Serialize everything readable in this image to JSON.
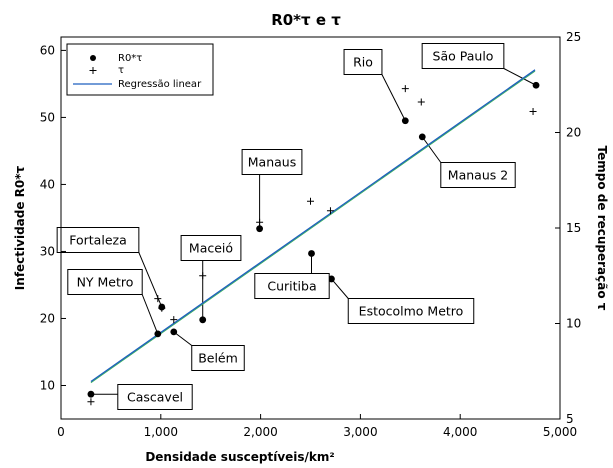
{
  "chart_data": {
    "type": "scatter",
    "title": "R0*τ e τ",
    "xlabel": "Densidade susceptíveis/km²",
    "ylabel_left": "Infectividade R0*τ",
    "ylabel_right": "Tempo de recuperação τ",
    "xlim": [
      0,
      5000
    ],
    "ylim_left": [
      5,
      62
    ],
    "ylim_right": [
      5,
      25
    ],
    "x_ticks": [
      0,
      1000,
      2000,
      3000,
      4000,
      5000
    ],
    "x_tick_labels": [
      "0",
      "1,000",
      "2,000",
      "3,000",
      "4,000",
      "5,000"
    ],
    "y_left_ticks": [
      10,
      20,
      30,
      40,
      50,
      60
    ],
    "y_right_ticks": [
      5,
      10,
      15,
      20,
      25
    ],
    "legend_position": "top-left",
    "legend": [
      "R0*τ",
      "τ",
      "Regressão linear"
    ],
    "series": [
      {
        "name": "R0*τ",
        "axis": "left",
        "marker": "circle",
        "x": [
          300,
          970,
          1010,
          1130,
          1420,
          1990,
          2510,
          2710,
          3450,
          3620,
          4760
        ],
        "y": [
          8.7,
          17.7,
          21.7,
          18.0,
          19.8,
          33.4,
          29.7,
          25.9,
          49.5,
          47.1,
          54.8
        ]
      },
      {
        "name": "τ",
        "axis": "right",
        "marker": "plus",
        "x": [
          300,
          970,
          1010,
          1130,
          1420,
          1990,
          2500,
          2700,
          3450,
          3610,
          4730
        ],
        "y": [
          5.9,
          11.3,
          10.8,
          10.2,
          12.5,
          15.3,
          16.4,
          15.9,
          22.3,
          21.6,
          21.1
        ]
      },
      {
        "name": "Regressão linear",
        "axis": "left",
        "type": "line",
        "x": [
          300,
          4750
        ],
        "y": [
          10.6,
          57.1
        ]
      }
    ],
    "annotations": [
      {
        "label": "Rio",
        "x": 3450,
        "y": 49.5
      },
      {
        "label": "São Paulo",
        "x": 4760,
        "y": 54.8
      },
      {
        "label": "Manaus",
        "x": 1990,
        "y": 33.4
      },
      {
        "label": "Manaus 2",
        "x": 3620,
        "y": 47.1
      },
      {
        "label": "Fortaleza",
        "x": 1010,
        "y": 21.7
      },
      {
        "label": "Maceió",
        "x": 1420,
        "y": 19.8
      },
      {
        "label": "NY Metro",
        "x": 970,
        "y": 17.7
      },
      {
        "label": "Belém",
        "x": 1130,
        "y": 18.0
      },
      {
        "label": "Curitiba",
        "x": 2510,
        "y": 29.7
      },
      {
        "label": "Estocolmo Metro",
        "x": 2710,
        "y": 25.9
      },
      {
        "label": "Cascavel",
        "x": 300,
        "y": 8.7
      }
    ],
    "colors": {
      "points": "#000000",
      "regression_line": "#1f5fbf",
      "regression_line_secondary": "#3ab060"
    }
  }
}
